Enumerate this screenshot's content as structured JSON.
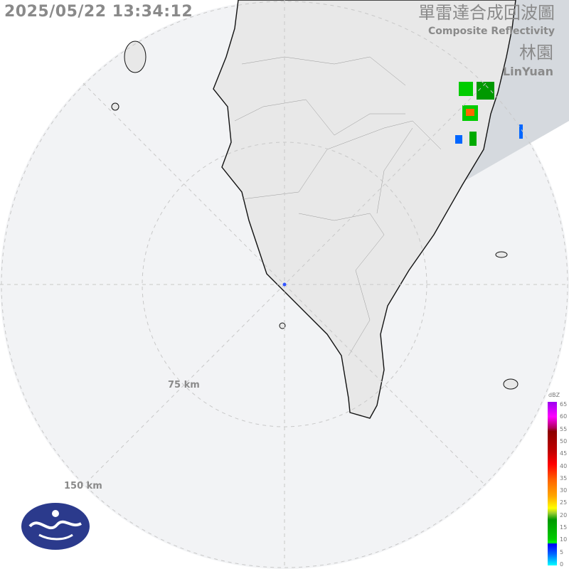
{
  "header": {
    "timestamp": "2025/05/22 13:34:12",
    "title_zh": "單雷達合成回波圖",
    "title_en": "Composite Reflectivity",
    "station_zh": "林園",
    "station_en": "LinYuan"
  },
  "range_rings": {
    "inner_label": "75 km",
    "outer_label": "150 km"
  },
  "colorbar": {
    "unit": "dBZ",
    "ticks": [
      "65",
      "60",
      "55",
      "50",
      "45",
      "40",
      "35",
      "30",
      "25",
      "20",
      "15",
      "10",
      "5",
      "0"
    ]
  },
  "colors": {
    "land": "#e8e8e8",
    "beam_block": "#d5d9de",
    "ring": "#c8c8c8",
    "logo": "#2b3a8c"
  },
  "logo": {
    "icon": "cwa-logo"
  }
}
